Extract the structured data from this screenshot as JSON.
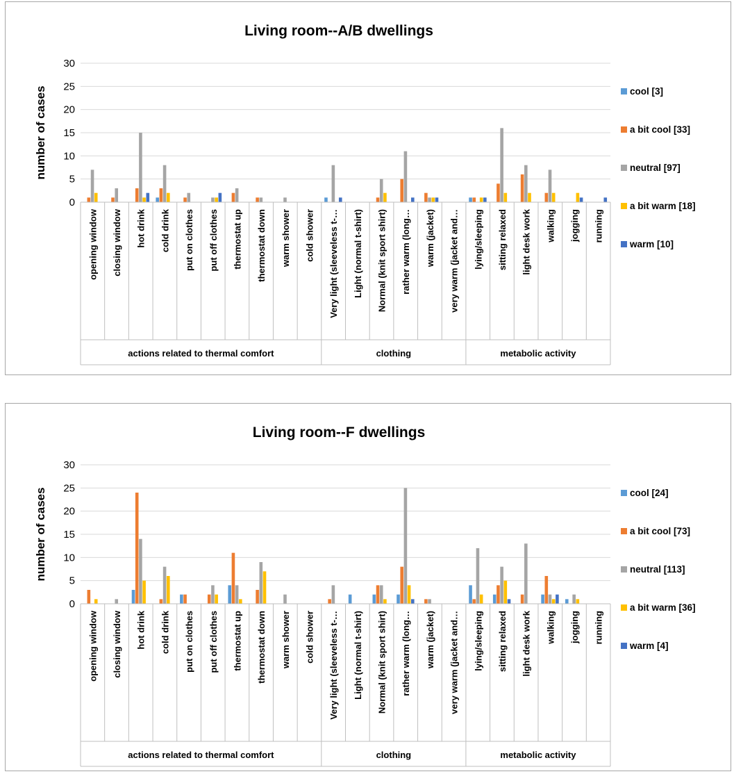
{
  "chart_data": [
    {
      "type": "bar",
      "title": "Living room--A/B dwellings",
      "xlabel": "",
      "ylabel": "number of cases",
      "ylim": [
        0,
        30
      ],
      "yticks": [
        0,
        5,
        10,
        15,
        20,
        25,
        30
      ],
      "grid": true,
      "legend_position": "right",
      "categories": [
        "opening window",
        "closing window",
        "hot drink",
        "cold drink",
        "put on clothes",
        "put off clothes",
        "thermostat up",
        "thermostat down",
        "warm shower",
        "cold shower",
        "Very light (sleeveless t-…",
        "Light (normal t-shirt)",
        "Normal (knit sport shirt)",
        "rather warm (long…",
        "warm (jacket)",
        "very warm (jacket and…",
        "lying/sleeping",
        "sitting relaxed",
        "light desk work",
        "walking",
        "jogging",
        "running"
      ],
      "groups": [
        {
          "label": "actions related to thermal comfort",
          "count": 10
        },
        {
          "label": "clothing",
          "count": 6
        },
        {
          "label": "metabolic activity",
          "count": 6
        }
      ],
      "series": [
        {
          "name": "cool [3]",
          "color": "#5b9bd5",
          "values": [
            0,
            0,
            0,
            1,
            0,
            0,
            0,
            0,
            0,
            0,
            1,
            0,
            0,
            0,
            0,
            0,
            1,
            0,
            0,
            0,
            0,
            0
          ]
        },
        {
          "name": "a bit cool [33]",
          "color": "#ed7d31",
          "values": [
            1,
            1,
            3,
            3,
            1,
            0,
            2,
            1,
            0,
            0,
            0,
            0,
            1,
            5,
            2,
            0,
            1,
            4,
            6,
            2,
            0,
            0
          ]
        },
        {
          "name": "neutral [97]",
          "color": "#a5a5a5",
          "values": [
            7,
            3,
            15,
            8,
            2,
            1,
            3,
            1,
            1,
            0,
            8,
            0,
            5,
            11,
            1,
            0,
            0,
            16,
            8,
            7,
            0,
            0
          ]
        },
        {
          "name": "a bit warm [18]",
          "color": "#ffc000",
          "values": [
            2,
            0,
            1,
            2,
            0,
            1,
            0,
            0,
            0,
            0,
            0,
            0,
            2,
            0,
            1,
            0,
            1,
            2,
            2,
            2,
            2,
            0
          ]
        },
        {
          "name": "warm [10]",
          "color": "#4472c4",
          "values": [
            0,
            0,
            2,
            0,
            0,
            2,
            0,
            0,
            0,
            0,
            1,
            0,
            0,
            1,
            1,
            0,
            1,
            0,
            0,
            0,
            1,
            1
          ]
        }
      ]
    },
    {
      "type": "bar",
      "title": "Living room--F dwellings",
      "xlabel": "",
      "ylabel": "number of cases",
      "ylim": [
        0,
        30
      ],
      "yticks": [
        0,
        5,
        10,
        15,
        20,
        25,
        30
      ],
      "grid": true,
      "legend_position": "right",
      "categories": [
        "opening window",
        "closing window",
        "hot drink",
        "cold drink",
        "put on clothes",
        "put off clothes",
        "thermostat up",
        "thermostat down",
        "warm shower",
        "cold shower",
        "Very light (sleeveless t-…",
        "Light (normal t-shirt)",
        "Normal (knit sport shirt)",
        "rather warm (long…",
        "warm (jacket)",
        "very warm (jacket and…",
        "lying/sleeping",
        "sitting relaxed",
        "light desk work",
        "walking",
        "jogging",
        "running"
      ],
      "groups": [
        {
          "label": "actions related to thermal comfort",
          "count": 10
        },
        {
          "label": "clothing",
          "count": 6
        },
        {
          "label": "metabolic activity",
          "count": 6
        }
      ],
      "series": [
        {
          "name": "cool [24]",
          "color": "#5b9bd5",
          "values": [
            0,
            0,
            3,
            0,
            2,
            0,
            4,
            0,
            0,
            0,
            0,
            2,
            2,
            2,
            0,
            0,
            4,
            2,
            0,
            2,
            1,
            0
          ]
        },
        {
          "name": "a bit cool [73]",
          "color": "#ed7d31",
          "values": [
            3,
            0,
            24,
            1,
            2,
            2,
            11,
            3,
            0,
            0,
            1,
            0,
            4,
            8,
            1,
            0,
            1,
            4,
            2,
            6,
            0,
            0
          ]
        },
        {
          "name": "neutral [113]",
          "color": "#a5a5a5",
          "values": [
            0,
            1,
            14,
            8,
            0,
            4,
            4,
            9,
            2,
            0,
            4,
            0,
            4,
            25,
            1,
            0,
            12,
            8,
            13,
            2,
            2,
            0
          ]
        },
        {
          "name": "a bit warm [36]",
          "color": "#ffc000",
          "values": [
            1,
            0,
            5,
            6,
            0,
            2,
            1,
            7,
            0,
            0,
            0,
            0,
            1,
            4,
            0,
            0,
            2,
            5,
            0,
            1,
            1,
            0
          ]
        },
        {
          "name": "warm [4]",
          "color": "#4472c4",
          "values": [
            0,
            0,
            0,
            0,
            0,
            0,
            0,
            0,
            0,
            0,
            0,
            0,
            0,
            1,
            0,
            0,
            0,
            1,
            0,
            2,
            0,
            0
          ]
        }
      ]
    }
  ]
}
